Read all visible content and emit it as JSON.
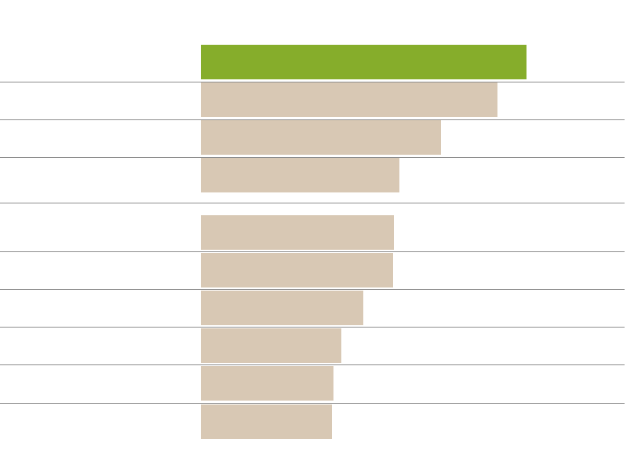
{
  "chart_data": {
    "type": "barh",
    "categories": [
      null,
      null,
      null,
      null,
      null,
      null,
      null,
      null,
      null,
      null
    ],
    "values": [
      415,
      378,
      306,
      253,
      246,
      245,
      207,
      179,
      169,
      167
    ],
    "colors": [
      "#86ad2b",
      "#d8c8b4",
      "#d8c8b4",
      "#d8c8b4",
      "#d8c8b4",
      "#d8c8b4",
      "#d8c8b4",
      "#d8c8b4",
      "#d8c8b4",
      "#d8c8b4"
    ],
    "xlim": [
      0,
      540
    ]
  }
}
